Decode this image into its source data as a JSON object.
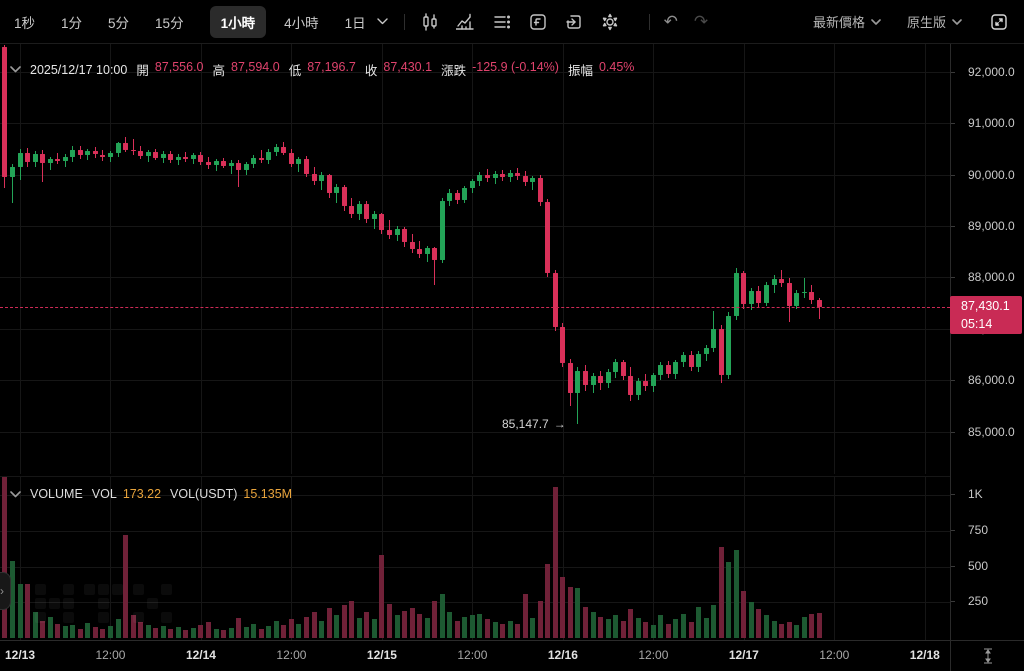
{
  "toolbar": {
    "timeframes": [
      {
        "label": "1秒",
        "active": false
      },
      {
        "label": "1分",
        "active": false
      },
      {
        "label": "5分",
        "active": false
      },
      {
        "label": "15分",
        "active": false
      },
      {
        "label": "1小時",
        "active": true
      },
      {
        "label": "4小時",
        "active": false
      },
      {
        "label": "1日",
        "active": false
      }
    ],
    "icons": [
      "candle-style",
      "indicators",
      "indicator-settings",
      "functions",
      "goto",
      "settings",
      "undo",
      "redo"
    ],
    "right": {
      "price_mode": "最新價格",
      "version": "原生版"
    }
  },
  "ohlc": {
    "datetime": "2025/12/17 10:00",
    "open_label": "開",
    "open": "87,556.0",
    "high_label": "高",
    "high": "87,594.0",
    "low_label": "低",
    "low": "87,196.7",
    "close_label": "收",
    "close": "87,430.1",
    "change_label": "漲跌",
    "change": "-125.9 (-0.14%)",
    "amplitude_label": "振幅",
    "amplitude": "0.45%"
  },
  "volume_header": {
    "title": "VOLUME",
    "vol_label": "VOL",
    "vol": "173.22",
    "vol_usdt_label": "VOL(USDT)",
    "vol_usdt": "15.135M"
  },
  "price_tag": {
    "price": "87,430.1",
    "countdown": "05:14"
  },
  "low_annotation": {
    "text": "85,147.7",
    "arrow": "→"
  },
  "colors": {
    "background": "#000000",
    "up": "#23a457",
    "down": "#d93059",
    "volume_up": "#1d5a32",
    "volume_down": "#702138",
    "price_line": "#cd2a55",
    "value_pink": "#e0436d",
    "value_orange": "#e9a43c"
  },
  "chart_data": {
    "type": "candlestick_with_volume",
    "timeframe": "1小時",
    "current_price": 87430.1,
    "low_marker": 85147.7,
    "start_hour_offset": -3,
    "price_axis": [
      {
        "label": "92,000.0",
        "value": 92000
      },
      {
        "label": "91,000.0",
        "value": 91000
      },
      {
        "label": "90,000.0",
        "value": 90000
      },
      {
        "label": "89,000.0",
        "value": 89000
      },
      {
        "label": "88,000.0",
        "value": 88000
      },
      {
        "label": "87,000.0",
        "value": 87000
      },
      {
        "label": "86,000.0",
        "value": 86000
      },
      {
        "label": "85,000.0",
        "value": 85000
      }
    ],
    "volume_axis": [
      {
        "label": "1K",
        "value": 1000
      },
      {
        "label": "750",
        "value": 750
      },
      {
        "label": "500",
        "value": 500
      },
      {
        "label": "250",
        "value": 250
      }
    ],
    "x_ticks": [
      {
        "label": "12/13",
        "hour": 0,
        "major": true
      },
      {
        "label": "12:00",
        "hour": 12,
        "major": false
      },
      {
        "label": "12/14",
        "hour": 24,
        "major": true
      },
      {
        "label": "12:00",
        "hour": 36,
        "major": false
      },
      {
        "label": "12/15",
        "hour": 48,
        "major": true
      },
      {
        "label": "12:00",
        "hour": 60,
        "major": false
      },
      {
        "label": "12/16",
        "hour": 72,
        "major": true
      },
      {
        "label": "12:00",
        "hour": 84,
        "major": false
      },
      {
        "label": "12/17",
        "hour": 96,
        "major": true
      },
      {
        "label": "12:00",
        "hour": 108,
        "major": false
      },
      {
        "label": "12/18",
        "hour": 120,
        "major": true
      }
    ],
    "candles": [
      [
        90700,
        92250,
        90600,
        92200
      ],
      [
        92480,
        92520,
        89740,
        89950
      ],
      [
        89950,
        90200,
        89450,
        90150
      ],
      [
        90150,
        90500,
        89900,
        90420
      ],
      [
        90420,
        90520,
        90150,
        90250
      ],
      [
        90250,
        90450,
        90150,
        90400
      ],
      [
        90400,
        90480,
        89850,
        90220
      ],
      [
        90220,
        90350,
        90080,
        90300
      ],
      [
        90300,
        90420,
        90200,
        90260
      ],
      [
        90260,
        90400,
        90150,
        90350
      ],
      [
        90350,
        90550,
        90250,
        90480
      ],
      [
        90480,
        90560,
        90300,
        90380
      ],
      [
        90380,
        90500,
        90280,
        90450
      ],
      [
        90450,
        90530,
        90330,
        90390
      ],
      [
        90390,
        90480,
        90270,
        90340
      ],
      [
        90340,
        90450,
        90240,
        90420
      ],
      [
        90420,
        90640,
        90350,
        90620
      ],
      [
        90620,
        90740,
        90440,
        90480
      ],
      [
        90480,
        90700,
        90380,
        90450
      ],
      [
        90450,
        90550,
        90300,
        90360
      ],
      [
        90360,
        90480,
        90250,
        90430
      ],
      [
        90430,
        90500,
        90280,
        90330
      ],
      [
        90330,
        90450,
        90220,
        90400
      ],
      [
        90400,
        90460,
        90230,
        90290
      ],
      [
        90290,
        90400,
        90180,
        90350
      ],
      [
        90350,
        90430,
        90240,
        90300
      ],
      [
        90300,
        90420,
        90200,
        90380
      ],
      [
        90380,
        90440,
        90180,
        90240
      ],
      [
        90240,
        90350,
        90100,
        90180
      ],
      [
        90180,
        90300,
        90060,
        90260
      ],
      [
        90260,
        90330,
        90120,
        90170
      ],
      [
        90170,
        90280,
        90020,
        90230
      ],
      [
        90230,
        90280,
        89760,
        90080
      ],
      [
        90080,
        90250,
        90000,
        90200
      ],
      [
        90200,
        90380,
        90120,
        90330
      ],
      [
        90330,
        90470,
        90230,
        90280
      ],
      [
        90280,
        90490,
        90210,
        90440
      ],
      [
        90440,
        90600,
        90360,
        90540
      ],
      [
        90540,
        90640,
        90380,
        90420
      ],
      [
        90420,
        90500,
        90150,
        90210
      ],
      [
        90210,
        90350,
        90050,
        90300
      ],
      [
        90300,
        90360,
        89950,
        90020
      ],
      [
        90020,
        90150,
        89800,
        89880
      ],
      [
        89880,
        90050,
        89700,
        89990
      ],
      [
        89990,
        90020,
        89550,
        89640
      ],
      [
        89640,
        89820,
        89450,
        89760
      ],
      [
        89760,
        89800,
        89300,
        89380
      ],
      [
        89380,
        89550,
        89150,
        89230
      ],
      [
        89230,
        89480,
        89120,
        89420
      ],
      [
        89420,
        89480,
        89050,
        89130
      ],
      [
        89130,
        89300,
        88950,
        89230
      ],
      [
        89230,
        89260,
        88850,
        88930
      ],
      [
        88930,
        89120,
        88750,
        88820
      ],
      [
        88820,
        89000,
        88700,
        88950
      ],
      [
        88950,
        88990,
        88600,
        88680
      ],
      [
        88680,
        88850,
        88480,
        88560
      ],
      [
        88560,
        88700,
        88380,
        88450
      ],
      [
        88450,
        88620,
        88300,
        88580
      ],
      [
        88580,
        88600,
        87850,
        88330
      ],
      [
        88330,
        89550,
        88280,
        89480
      ],
      [
        89480,
        89720,
        89380,
        89650
      ],
      [
        89650,
        89700,
        89420,
        89500
      ],
      [
        89500,
        89780,
        89450,
        89730
      ],
      [
        89730,
        89920,
        89650,
        89870
      ],
      [
        89870,
        90050,
        89780,
        89990
      ],
      [
        89990,
        90110,
        89850,
        89930
      ],
      [
        89930,
        90060,
        89820,
        90010
      ],
      [
        90010,
        90090,
        89880,
        89960
      ],
      [
        89960,
        90080,
        89850,
        90040
      ],
      [
        90040,
        90120,
        89900,
        89980
      ],
      [
        89980,
        90060,
        89780,
        89850
      ],
      [
        89850,
        89980,
        89700,
        89940
      ],
      [
        89940,
        89990,
        89380,
        89470
      ],
      [
        89470,
        89520,
        88000,
        88080
      ],
      [
        88080,
        88150,
        86950,
        87040
      ],
      [
        87040,
        87120,
        86250,
        86340
      ],
      [
        86340,
        86420,
        85500,
        85760
      ],
      [
        85760,
        86250,
        85147.7,
        86180
      ],
      [
        86180,
        86300,
        85800,
        85900
      ],
      [
        85900,
        86150,
        85750,
        86080
      ],
      [
        86080,
        86180,
        85820,
        85950
      ],
      [
        85950,
        86220,
        85850,
        86160
      ],
      [
        86160,
        86420,
        86050,
        86350
      ],
      [
        86350,
        86400,
        86000,
        86080
      ],
      [
        86080,
        86250,
        85600,
        85720
      ],
      [
        85720,
        86050,
        85620,
        85980
      ],
      [
        85980,
        86120,
        85800,
        85880
      ],
      [
        85880,
        86150,
        85780,
        86100
      ],
      [
        86100,
        86350,
        86000,
        86300
      ],
      [
        86300,
        86380,
        86050,
        86130
      ],
      [
        86130,
        86400,
        86020,
        86350
      ],
      [
        86350,
        86550,
        86250,
        86490
      ],
      [
        86490,
        86560,
        86180,
        86260
      ],
      [
        86260,
        86570,
        86160,
        86520
      ],
      [
        86520,
        86680,
        86380,
        86620
      ],
      [
        86620,
        87350,
        86550,
        87000
      ],
      [
        87000,
        87080,
        85950,
        86100
      ],
      [
        86100,
        87320,
        86020,
        87250
      ],
      [
        87250,
        88180,
        87180,
        88090
      ],
      [
        88090,
        88120,
        87380,
        87480
      ],
      [
        87480,
        87800,
        87360,
        87740
      ],
      [
        87740,
        87830,
        87420,
        87500
      ],
      [
        87500,
        87920,
        87450,
        87860
      ],
      [
        87860,
        88050,
        87700,
        87960
      ],
      [
        87960,
        88140,
        87820,
        87890
      ],
      [
        87890,
        87990,
        87130,
        87450
      ],
      [
        87450,
        87760,
        87380,
        87700
      ],
      [
        87700,
        87990,
        87600,
        87720
      ],
      [
        87720,
        87850,
        87480,
        87556
      ],
      [
        87556,
        87594,
        87196.7,
        87430.1
      ]
    ],
    "volumes": [
      220,
      1900,
      540,
      380,
      375,
      185,
      120,
      150,
      95,
      85,
      90,
      65,
      105,
      75,
      60,
      85,
      130,
      720,
      160,
      110,
      90,
      70,
      85,
      60,
      75,
      55,
      70,
      90,
      110,
      65,
      55,
      70,
      140,
      75,
      95,
      60,
      85,
      120,
      90,
      130,
      95,
      150,
      180,
      120,
      210,
      160,
      230,
      260,
      140,
      180,
      130,
      580,
      240,
      160,
      190,
      210,
      170,
      140,
      260,
      310,
      180,
      120,
      150,
      160,
      170,
      130,
      110,
      95,
      120,
      100,
      310,
      140,
      260,
      520,
      1060,
      430,
      360,
      350,
      220,
      180,
      150,
      130,
      160,
      120,
      200,
      140,
      110,
      90,
      160,
      100,
      130,
      170,
      110,
      220,
      140,
      230,
      640,
      530,
      620,
      330,
      250,
      200,
      160,
      120,
      95,
      110,
      90,
      150,
      170,
      173
    ]
  }
}
